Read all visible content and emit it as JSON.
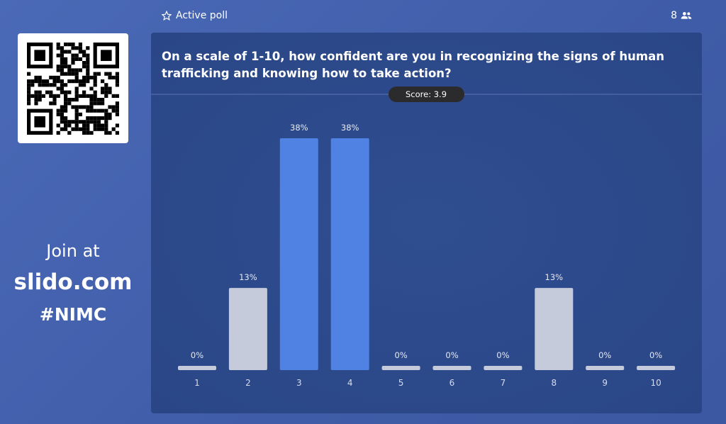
{
  "header": {
    "status": "Active poll",
    "participants": 8
  },
  "join": {
    "line1": "Join at",
    "site": "slido.com",
    "code": "#NIMC"
  },
  "poll": {
    "question": "On a scale of 1-10, how confident are you in recognizing the signs of human trafficking and knowing how to take action?",
    "score": "Score: 3.9",
    "chart_data": {
      "type": "bar",
      "categories": [
        "1",
        "2",
        "3",
        "4",
        "5",
        "6",
        "7",
        "8",
        "9",
        "10"
      ],
      "values": [
        0,
        13,
        38,
        38,
        0,
        0,
        0,
        13,
        0,
        0
      ],
      "value_labels": [
        "0%",
        "13%",
        "38%",
        "38%",
        "0%",
        "0%",
        "0%",
        "13%",
        "0%",
        "0%"
      ],
      "colors": [
        "#c6cbdb",
        "#c6cbdb",
        "#4f82e3",
        "#4f82e3",
        "#c6cbdb",
        "#c6cbdb",
        "#c6cbdb",
        "#c6cbdb",
        "#c6cbdb",
        "#c6cbdb"
      ]
    }
  }
}
